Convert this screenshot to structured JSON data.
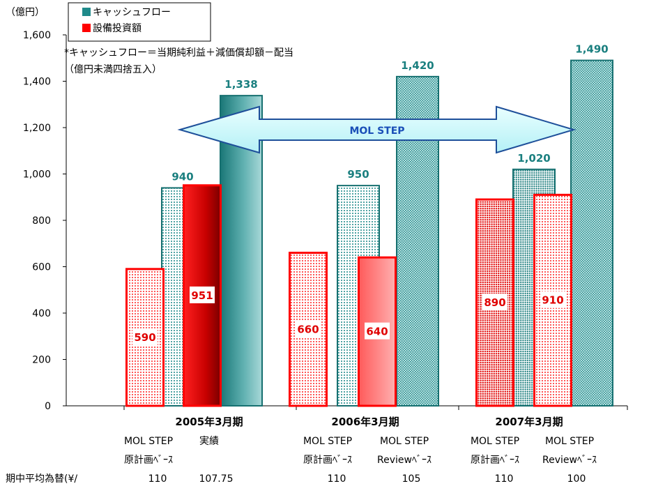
{
  "chart_data": {
    "type": "bar",
    "unit_label": "（億円）",
    "ylim": [
      0,
      1600
    ],
    "yticks": [
      "0",
      "200",
      "400",
      "600",
      "800",
      "1,000",
      "1,200",
      "1,400",
      "1,600"
    ],
    "series": [
      {
        "name": "キャッシュフロー",
        "color": "#1f8a8a"
      },
      {
        "name": "設備投資額",
        "color": "#ff0000"
      }
    ],
    "note_lines": [
      "*キャッシュフロー＝当期純利益＋減価償却額－配当",
      "（億円未満四捨五入）"
    ],
    "arrow_label": "MOL STEP",
    "groups": [
      {
        "period": "2005年3月期",
        "sub": [
          {
            "base_line1": "MOL STEP",
            "base_line2": "原計画ﾍﾞｰｽ",
            "fx": "110",
            "capex": 590,
            "capex_label": "590",
            "cf": 940,
            "cf_label": "940"
          },
          {
            "base_line1": "実績",
            "base_line2": "",
            "fx": "107.75",
            "capex": 951,
            "capex_label": "951",
            "cf": 1338,
            "cf_label": "1,338"
          }
        ]
      },
      {
        "period": "2006年3月期",
        "sub": [
          {
            "base_line1": "MOL STEP",
            "base_line2": "原計画ﾍﾞｰｽ",
            "fx": "110",
            "capex": 660,
            "capex_label": "660",
            "cf": 950,
            "cf_label": "950"
          },
          {
            "base_line1": "MOL STEP",
            "base_line2": "Reviewﾍﾞｰｽ",
            "fx": "105",
            "capex": 640,
            "capex_label": "640",
            "cf": 1420,
            "cf_label": "1,420"
          }
        ]
      },
      {
        "period": "2007年3月期",
        "sub": [
          {
            "base_line1": "MOL STEP",
            "base_line2": "原計画ﾍﾞｰｽ",
            "fx": "110",
            "capex": 890,
            "capex_label": "890",
            "cf": 1020,
            "cf_label": "1,020"
          },
          {
            "base_line1": "MOL STEP",
            "base_line2": "Reviewﾍﾞｰｽ",
            "fx": "100",
            "capex": 910,
            "capex_label": "910",
            "cf": 1490,
            "cf_label": "1,490"
          }
        ]
      }
    ],
    "fx_row_label": "期中平均為替(¥/"
  }
}
